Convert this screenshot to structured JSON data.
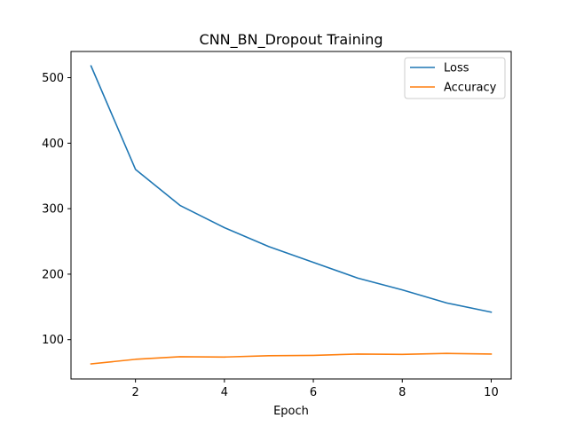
{
  "chart_data": {
    "type": "line",
    "title": "CNN_BN_Dropout Training",
    "xlabel": "Epoch",
    "ylabel": "",
    "xlim": [
      0.55,
      10.45
    ],
    "ylim": [
      40,
      540
    ],
    "xticks": [
      2,
      4,
      6,
      8,
      10
    ],
    "yticks": [
      100,
      200,
      300,
      400,
      500
    ],
    "grid": false,
    "legend_position": "top-right",
    "x": [
      1,
      2,
      3,
      4,
      5,
      6,
      7,
      8,
      9,
      10
    ],
    "series": [
      {
        "name": "Loss",
        "color": "#1f77b4",
        "values": [
          518,
          360,
          305,
          271,
          242,
          218,
          194,
          176,
          156,
          142
        ]
      },
      {
        "name": "Accuracy",
        "color": "#ff7f0e",
        "values": [
          63,
          70,
          74,
          73.5,
          75.5,
          76,
          78,
          77.5,
          79,
          78
        ]
      }
    ]
  }
}
